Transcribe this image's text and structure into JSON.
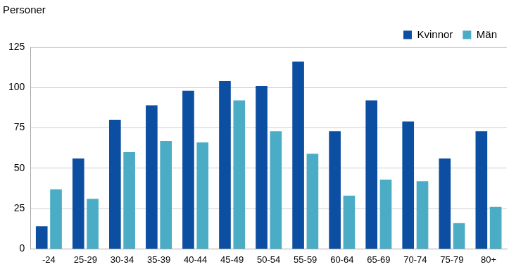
{
  "chart_data": {
    "type": "bar",
    "y_label": "Personer",
    "categories": [
      "-24",
      "25-29",
      "30-34",
      "35-39",
      "40-44",
      "45-49",
      "50-54",
      "55-59",
      "60-64",
      "65-69",
      "70-74",
      "75-79",
      "80+"
    ],
    "series": [
      {
        "name": "Kvinnor",
        "color": "#0b4ea2",
        "values": [
          14,
          56,
          80,
          89,
          98,
          104,
          101,
          116,
          73,
          92,
          79,
          56,
          73
        ]
      },
      {
        "name": "Män",
        "color": "#4bacc6",
        "values": [
          37,
          31,
          60,
          67,
          66,
          92,
          73,
          59,
          33,
          43,
          42,
          16,
          26
        ]
      }
    ],
    "ylim": [
      0,
      125
    ],
    "yticks": [
      0,
      25,
      50,
      75,
      100,
      125
    ],
    "grid": true,
    "legend": "upper right"
  }
}
